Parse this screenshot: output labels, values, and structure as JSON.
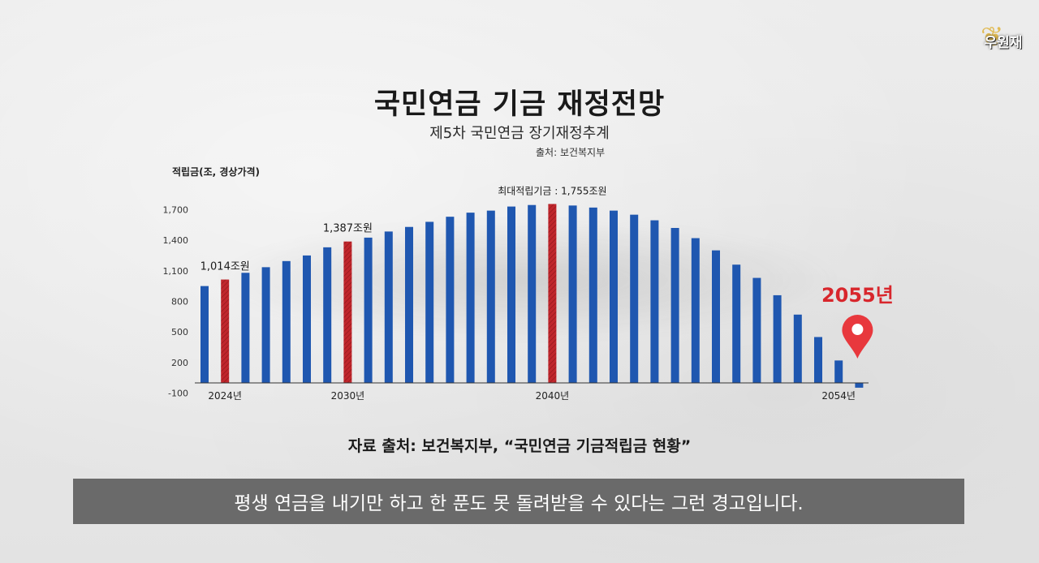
{
  "logo": {
    "text": "우원재"
  },
  "title": "국민연금 기금 재정전망",
  "subtitle": "제5차 국민연금 장기재정추계",
  "source_top": "출처: 보건복지부",
  "source_bottom": "자료 출처: 보건복지부, “국민연금 기금적립금 현황”",
  "caption": "평생 연금을 내기만 하고 한 푼도 못 돌려받을 수 있다는 그런 경고입니다.",
  "marker_label": "2055년",
  "colors": {
    "bar": "#1f57b0",
    "highlight": "#c0262c",
    "marker": "#e8383d",
    "axis": "#333333"
  },
  "chart_data": {
    "type": "bar",
    "ylabel": "적립금(조, 경상가격)",
    "ylim": [
      -100,
      1900
    ],
    "yticks": [
      -100,
      200,
      500,
      800,
      1100,
      1400,
      1700
    ],
    "ytick_labels": [
      "-100",
      "200",
      "500",
      "800",
      "1,100",
      "1,400",
      "1,700"
    ],
    "categories": [
      "2023",
      "2024",
      "2025",
      "2026",
      "2027",
      "2028",
      "2029",
      "2030",
      "2031",
      "2032",
      "2033",
      "2034",
      "2035",
      "2036",
      "2037",
      "2038",
      "2039",
      "2040",
      "2041",
      "2042",
      "2043",
      "2044",
      "2045",
      "2046",
      "2047",
      "2048",
      "2049",
      "2050",
      "2051",
      "2052",
      "2053",
      "2054",
      "2055"
    ],
    "values": [
      950,
      1014,
      1080,
      1135,
      1195,
      1250,
      1330,
      1387,
      1425,
      1485,
      1530,
      1580,
      1630,
      1670,
      1690,
      1730,
      1745,
      1755,
      1740,
      1720,
      1690,
      1650,
      1595,
      1520,
      1420,
      1300,
      1160,
      1030,
      860,
      670,
      450,
      220,
      -47
    ],
    "highlight_indices": [
      1,
      7,
      17
    ],
    "xtick_labels": [
      {
        "index": 1,
        "label": "2024년"
      },
      {
        "index": 7,
        "label": "2030년"
      },
      {
        "index": 17,
        "label": "2040년"
      },
      {
        "index": 31,
        "label": "2054년"
      }
    ],
    "annotations": [
      {
        "index": 1,
        "text": "1,014조원"
      },
      {
        "index": 7,
        "text": "1,387조원"
      },
      {
        "index": 17,
        "text": "최대적립기금 : 1,755조원"
      }
    ]
  }
}
